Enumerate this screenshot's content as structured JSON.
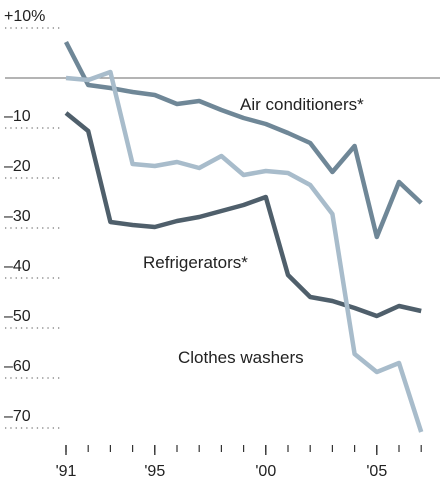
{
  "chart_data": {
    "type": "line",
    "x": [
      1991,
      1992,
      1993,
      1994,
      1995,
      1996,
      1997,
      1998,
      1999,
      2000,
      2001,
      2002,
      2003,
      2004,
      2005,
      2006,
      2007
    ],
    "series": [
      {
        "name": "Air conditioners*",
        "color": "#6f8797",
        "values": [
          7.2,
          -1.4,
          -2,
          -2.8,
          -3.4,
          -5.2,
          -4.6,
          -6.4,
          -8,
          -9.2,
          -11,
          -13,
          -18.8,
          -13.6,
          -31.8,
          -20.8,
          -25
        ]
      },
      {
        "name": "Refrigerators*",
        "color": "#4f5f6b",
        "values": [
          -7,
          -10.6,
          -28.8,
          -29.4,
          -29.8,
          -28.6,
          -27.8,
          -26.6,
          -25.4,
          -23.8,
          -39.4,
          -43.8,
          -44.6,
          -46,
          -47.6,
          -45.6,
          -46.6
        ]
      },
      {
        "name": "Clothes washers",
        "color": "#a8bccb",
        "values": [
          0,
          -0.4,
          1.2,
          -17.2,
          -17.6,
          -16.8,
          -18,
          -15.6,
          -19.4,
          -18.6,
          -19,
          -21.4,
          -27.2,
          -55.2,
          -58.8,
          -57,
          -70.8
        ]
      }
    ],
    "xlim": [
      1990.5,
      2007.5
    ],
    "xticks": [
      {
        "value": 1991,
        "label": "'91"
      },
      {
        "value": 1995,
        "label": "'95"
      },
      {
        "value": 2000,
        "label": "'00"
      },
      {
        "value": 2005,
        "label": "'05"
      }
    ],
    "ylim": [
      -72,
      12
    ],
    "yticks": [
      {
        "value": 10,
        "label": "+10%"
      },
      {
        "value": -10,
        "label": "–10"
      },
      {
        "value": -20,
        "label": "–20"
      },
      {
        "value": -30,
        "label": "–30"
      },
      {
        "value": -40,
        "label": "–40"
      },
      {
        "value": -50,
        "label": "–50"
      },
      {
        "value": -60,
        "label": "–60"
      },
      {
        "value": -70,
        "label": "–70"
      }
    ],
    "grid": true
  }
}
